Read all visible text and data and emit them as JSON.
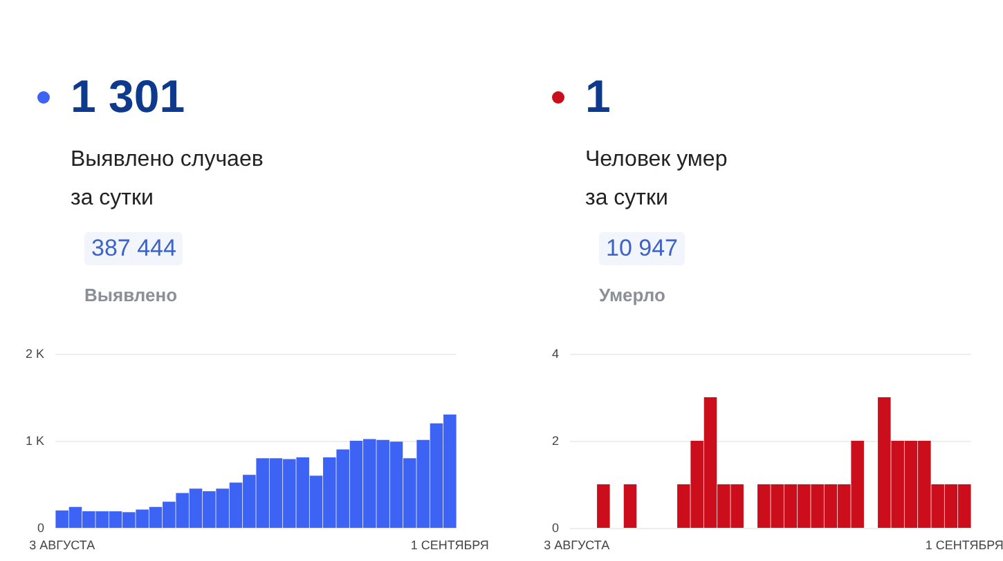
{
  "chart_data": [
    {
      "type": "bar",
      "title": "1 301",
      "subtitle": "Выявлено случаев\nза сутки",
      "annotations": [
        "387 444",
        "Выявлено"
      ],
      "categories": [
        "3 АВГУСТА",
        null,
        null,
        null,
        null,
        null,
        null,
        null,
        null,
        null,
        null,
        null,
        null,
        null,
        null,
        null,
        null,
        null,
        null,
        null,
        null,
        null,
        null,
        null,
        null,
        null,
        null,
        null,
        null,
        "1 СЕНТЯБРЯ"
      ],
      "values": [
        200,
        240,
        190,
        190,
        190,
        180,
        210,
        240,
        300,
        400,
        450,
        420,
        450,
        520,
        610,
        800,
        800,
        790,
        810,
        600,
        810,
        900,
        1000,
        1020,
        1010,
        990,
        800,
        1010,
        1200,
        1301
      ],
      "color": "#3d63f5",
      "ylim": [
        0,
        2000
      ],
      "yticks": [
        {
          "value": 0,
          "label": "0"
        },
        {
          "value": 1000,
          "label": "1 K"
        },
        {
          "value": 2000,
          "label": "2 K"
        }
      ],
      "grid": "y"
    },
    {
      "type": "bar",
      "title": "1",
      "subtitle": "Человек умер\nза сутки",
      "annotations": [
        "10 947",
        "Умерло"
      ],
      "categories": [
        "3 АВГУСТА",
        null,
        null,
        null,
        null,
        null,
        null,
        null,
        null,
        null,
        null,
        null,
        null,
        null,
        null,
        null,
        null,
        null,
        null,
        null,
        null,
        null,
        null,
        null,
        null,
        null,
        null,
        null,
        null,
        "1 СЕНТЯБРЯ"
      ],
      "values": [
        0,
        0,
        1,
        0,
        1,
        0,
        0,
        0,
        1,
        2,
        3,
        1,
        1,
        0,
        1,
        1,
        1,
        1,
        1,
        1,
        1,
        2,
        0,
        3,
        2,
        2,
        2,
        1,
        1,
        1
      ],
      "color": "#cc0e1c",
      "ylim": [
        0,
        4
      ],
      "yticks": [
        0,
        2,
        4
      ],
      "grid": "y"
    }
  ]
}
